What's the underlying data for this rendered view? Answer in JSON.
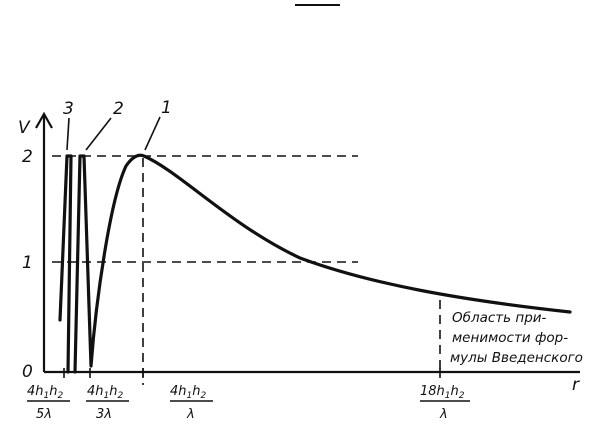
{
  "diagram": {
    "y_axis_label": "V",
    "x_axis_label": "r",
    "y_ticks": [
      "0",
      "1",
      "2"
    ],
    "curve_labels": [
      "3",
      "2",
      "1"
    ],
    "x_ticks": [
      {
        "num": "4h",
        "sub1": "1",
        "mid": "h",
        "sub2": "2",
        "den": "5λ"
      },
      {
        "num": "4h",
        "sub1": "1",
        "mid": "h",
        "sub2": "2",
        "den": "3λ"
      },
      {
        "num": "4h",
        "sub1": "1",
        "mid": "h",
        "sub2": "2",
        "den": "λ"
      },
      {
        "num": "18h",
        "sub1": "1",
        "mid": "h",
        "sub2": "2",
        "den": "λ"
      }
    ],
    "region_note": [
      "Область при-",
      "менимости фор-",
      "мулы Введенского"
    ]
  }
}
